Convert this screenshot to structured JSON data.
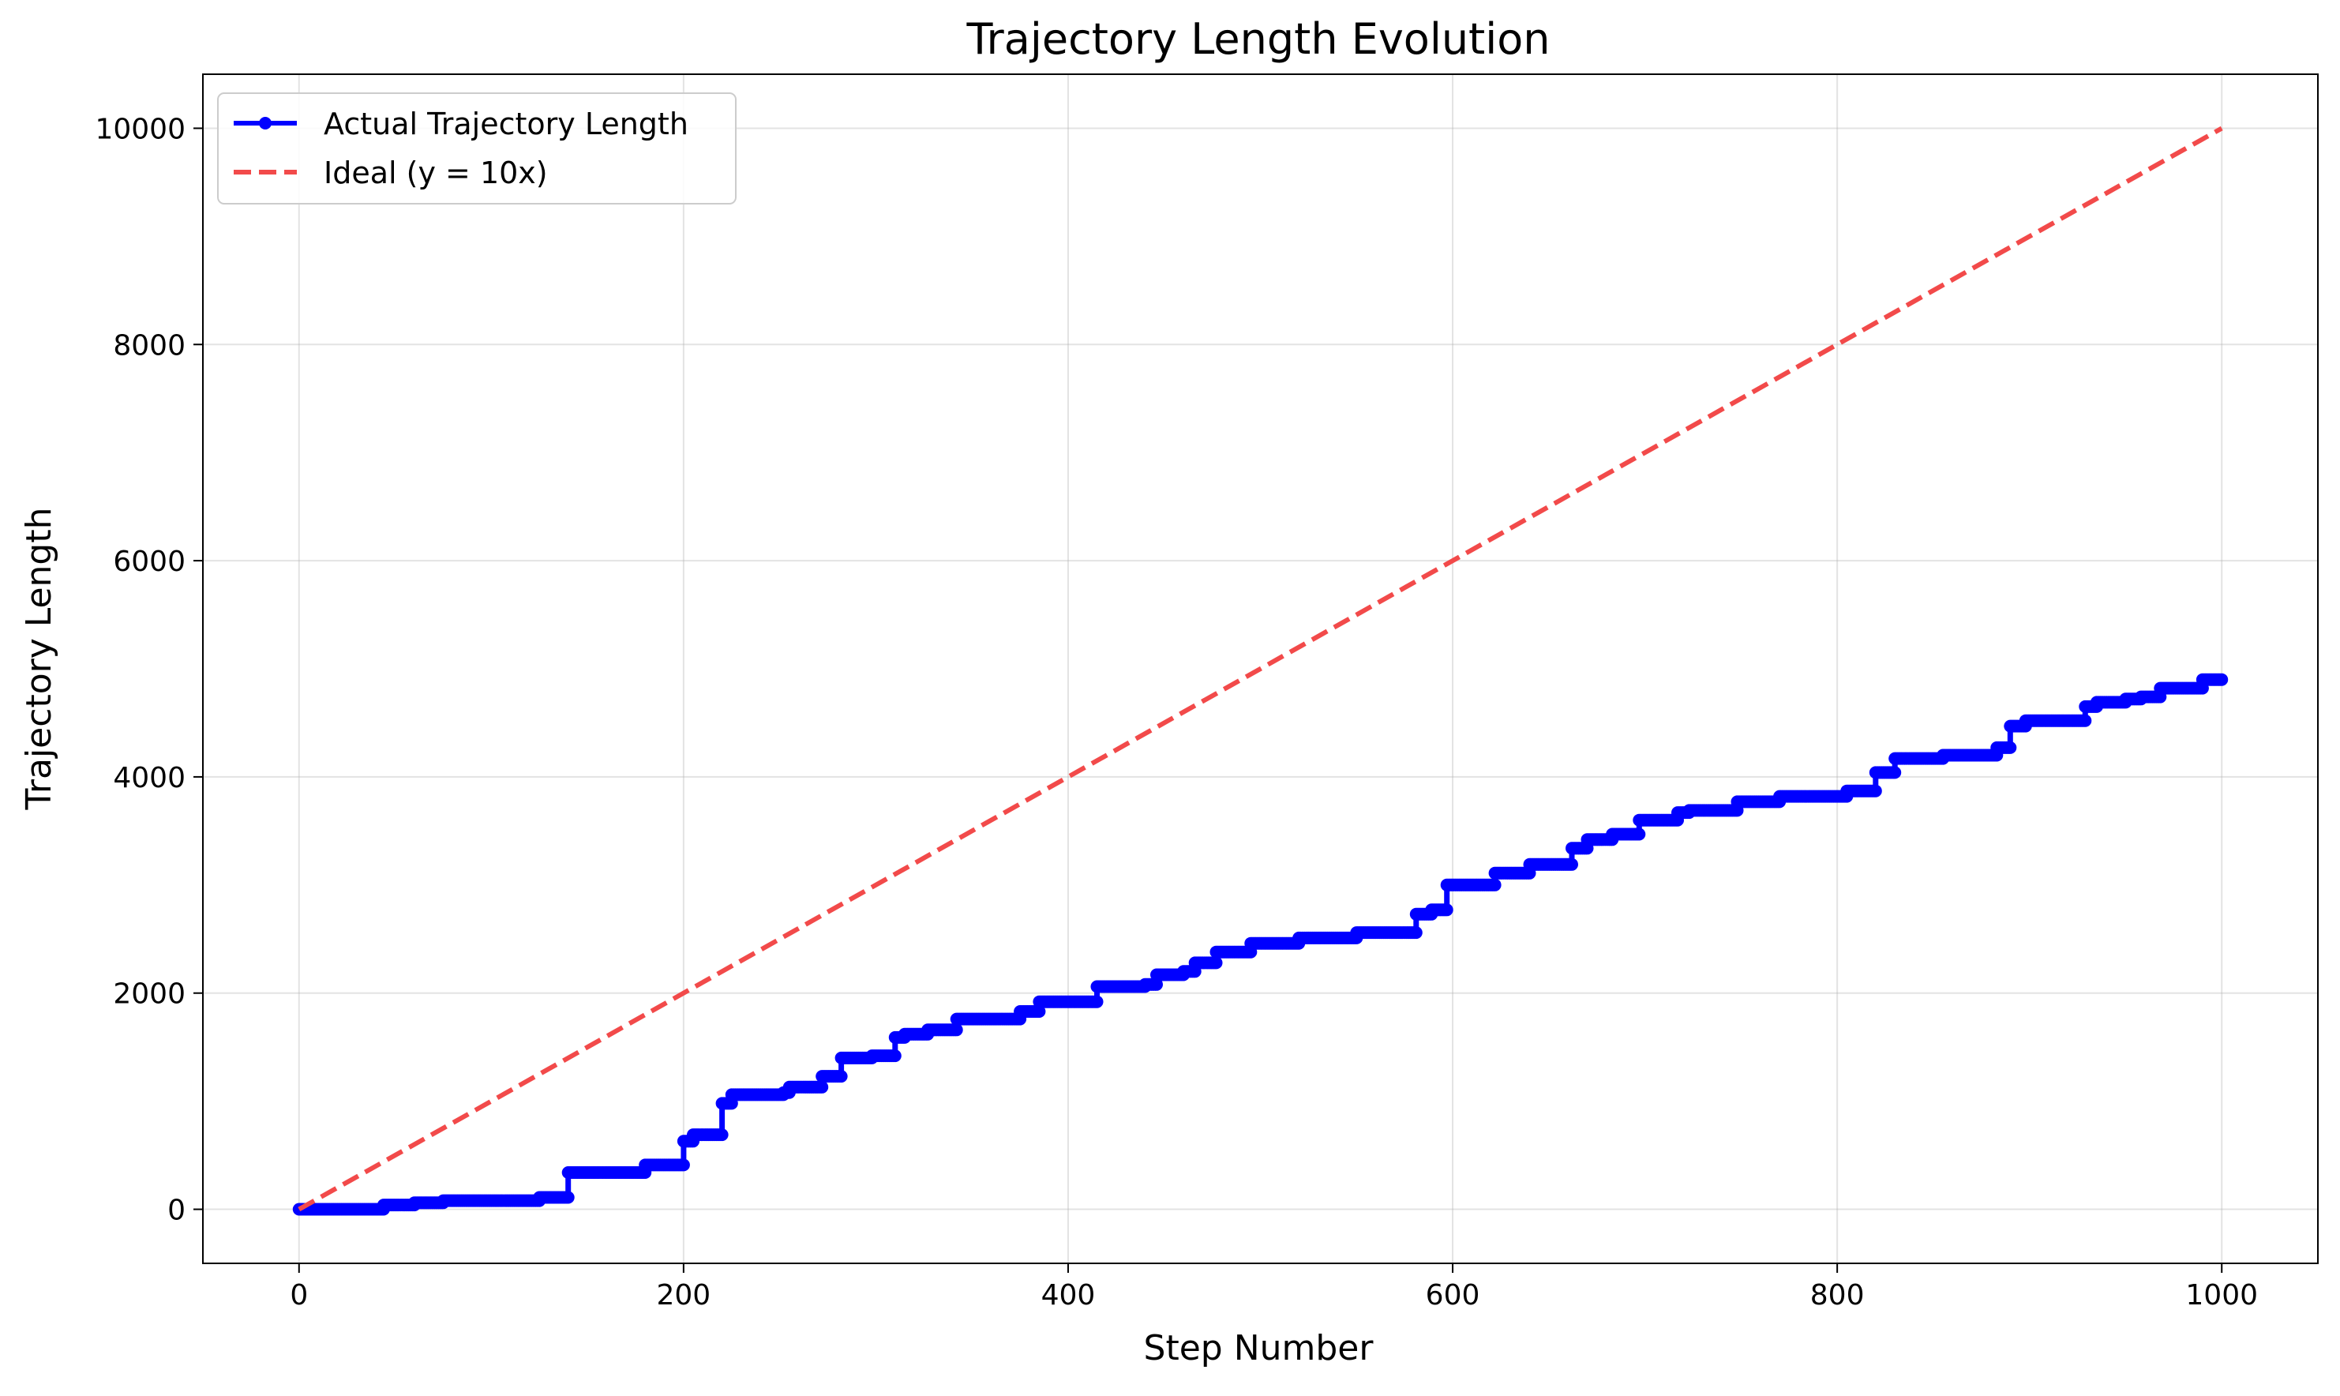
{
  "chart_data": {
    "type": "line",
    "title": "Trajectory Length Evolution",
    "xlabel": "Step Number",
    "ylabel": "Trajectory Length",
    "xlim": [
      -50,
      1050
    ],
    "ylim": [
      -500,
      10500
    ],
    "xticks": [
      0,
      200,
      400,
      600,
      800,
      1000
    ],
    "yticks": [
      0,
      2000,
      4000,
      6000,
      8000,
      10000
    ],
    "grid": true,
    "legend_position": "top-left",
    "series": [
      {
        "name": "Actual Trajectory Length",
        "color": "#0000ff",
        "style": "solid-with-markers",
        "points": [
          [
            0,
            0
          ],
          [
            44,
            0
          ],
          [
            44,
            40
          ],
          [
            60,
            40
          ],
          [
            60,
            60
          ],
          [
            75,
            60
          ],
          [
            75,
            80
          ],
          [
            125,
            80
          ],
          [
            125,
            110
          ],
          [
            140,
            110
          ],
          [
            140,
            340
          ],
          [
            180,
            340
          ],
          [
            180,
            410
          ],
          [
            200,
            410
          ],
          [
            200,
            630
          ],
          [
            205,
            630
          ],
          [
            205,
            690
          ],
          [
            220,
            690
          ],
          [
            220,
            980
          ],
          [
            225,
            980
          ],
          [
            225,
            1060
          ],
          [
            252,
            1060
          ],
          [
            252,
            1080
          ],
          [
            255,
            1080
          ],
          [
            255,
            1130
          ],
          [
            272,
            1130
          ],
          [
            272,
            1230
          ],
          [
            282,
            1230
          ],
          [
            282,
            1400
          ],
          [
            298,
            1400
          ],
          [
            298,
            1420
          ],
          [
            310,
            1420
          ],
          [
            310,
            1590
          ],
          [
            315,
            1590
          ],
          [
            315,
            1620
          ],
          [
            327,
            1620
          ],
          [
            327,
            1660
          ],
          [
            342,
            1660
          ],
          [
            342,
            1760
          ],
          [
            375,
            1760
          ],
          [
            375,
            1830
          ],
          [
            385,
            1830
          ],
          [
            385,
            1920
          ],
          [
            415,
            1920
          ],
          [
            415,
            2060
          ],
          [
            440,
            2060
          ],
          [
            440,
            2080
          ],
          [
            446,
            2080
          ],
          [
            446,
            2170
          ],
          [
            460,
            2170
          ],
          [
            460,
            2200
          ],
          [
            466,
            2200
          ],
          [
            466,
            2280
          ],
          [
            477,
            2280
          ],
          [
            477,
            2380
          ],
          [
            495,
            2380
          ],
          [
            495,
            2460
          ],
          [
            520,
            2460
          ],
          [
            520,
            2510
          ],
          [
            550,
            2510
          ],
          [
            550,
            2560
          ],
          [
            581,
            2560
          ],
          [
            581,
            2730
          ],
          [
            589,
            2730
          ],
          [
            589,
            2770
          ],
          [
            597,
            2770
          ],
          [
            597,
            3000
          ],
          [
            622,
            3000
          ],
          [
            622,
            3110
          ],
          [
            640,
            3110
          ],
          [
            640,
            3190
          ],
          [
            662,
            3190
          ],
          [
            662,
            3340
          ],
          [
            670,
            3340
          ],
          [
            670,
            3420
          ],
          [
            683,
            3420
          ],
          [
            683,
            3470
          ],
          [
            697,
            3470
          ],
          [
            697,
            3600
          ],
          [
            717,
            3600
          ],
          [
            717,
            3670
          ],
          [
            723,
            3670
          ],
          [
            723,
            3690
          ],
          [
            748,
            3690
          ],
          [
            748,
            3770
          ],
          [
            770,
            3770
          ],
          [
            770,
            3820
          ],
          [
            805,
            3820
          ],
          [
            805,
            3870
          ],
          [
            820,
            3870
          ],
          [
            820,
            4040
          ],
          [
            830,
            4040
          ],
          [
            830,
            4170
          ],
          [
            855,
            4170
          ],
          [
            855,
            4200
          ],
          [
            883,
            4200
          ],
          [
            883,
            4270
          ],
          [
            890,
            4270
          ],
          [
            890,
            4470
          ],
          [
            898,
            4470
          ],
          [
            898,
            4520
          ],
          [
            929,
            4520
          ],
          [
            929,
            4650
          ],
          [
            935,
            4650
          ],
          [
            935,
            4690
          ],
          [
            950,
            4690
          ],
          [
            950,
            4720
          ],
          [
            958,
            4720
          ],
          [
            958,
            4740
          ],
          [
            968,
            4740
          ],
          [
            968,
            4820
          ],
          [
            990,
            4820
          ],
          [
            990,
            4900
          ],
          [
            1000,
            4900
          ]
        ]
      },
      {
        "name": "Ideal (y = 10x)",
        "color": "#f24a4a",
        "style": "dashed",
        "points": [
          [
            0,
            0
          ],
          [
            1000,
            10000
          ]
        ]
      }
    ]
  }
}
